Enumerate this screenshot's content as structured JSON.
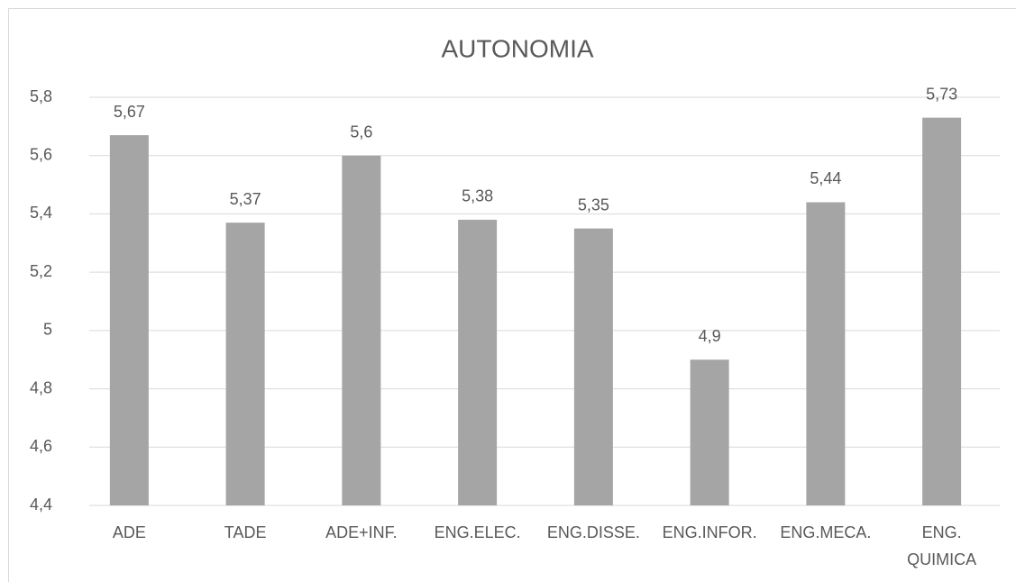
{
  "chart_data": {
    "type": "bar",
    "title": "AUTONOMIA",
    "categories": [
      "ADE",
      "TADE",
      "ADE+INF.",
      "ENG.ELEC.",
      "ENG.DISSE.",
      "ENG.INFOR.",
      "ENG.MECA.",
      "ENG. QUIMICA"
    ],
    "values": [
      5.67,
      5.37,
      5.6,
      5.38,
      5.35,
      4.9,
      5.44,
      5.73
    ],
    "value_labels": [
      "5,67",
      "5,37",
      "5,6",
      "5,38",
      "5,35",
      "4,9",
      "5,44",
      "5,73"
    ],
    "color": "#a5a5a5",
    "ylim": [
      4.4,
      5.8
    ],
    "yticks": [
      {
        "value": 4.4,
        "label": "4,4"
      },
      {
        "value": 4.6,
        "label": "4,6"
      },
      {
        "value": 4.8,
        "label": "4,8"
      },
      5,
      {
        "value": 5.2,
        "label": "5,2"
      },
      {
        "value": 5.4,
        "label": "5,4"
      },
      {
        "value": 5.6,
        "label": "5,6"
      },
      {
        "value": 5.8,
        "label": "5,8"
      }
    ],
    "grid": true
  }
}
